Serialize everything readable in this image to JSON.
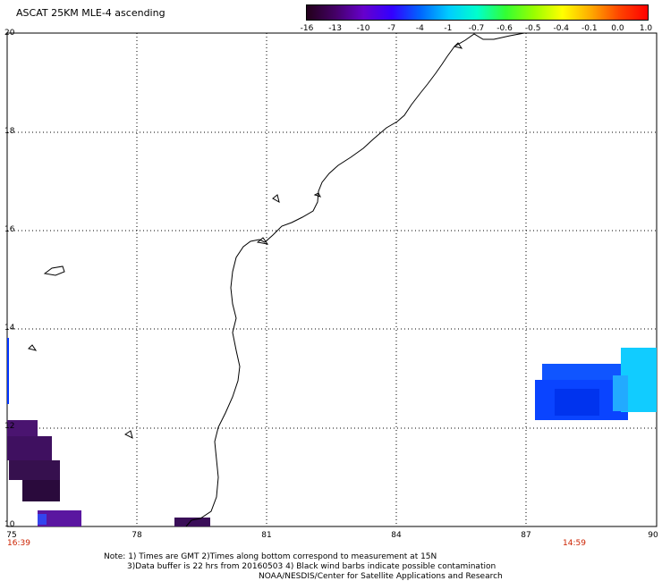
{
  "title": "ASCAT 25KM MLE-4 ascending",
  "colorbar": {
    "labels": [
      "-16",
      "-13",
      "-10",
      "-7",
      "-4",
      "-1",
      "-0.7",
      "-0.6",
      "-0.5",
      "-0.4",
      "-0.1",
      "0.0",
      "1.0"
    ],
    "colors": [
      "#22001a",
      "#440066",
      "#6600cc",
      "#3300ff",
      "#0066ff",
      "#00ccff",
      "#00ffcc",
      "#33ff33",
      "#99ff00",
      "#ffff00",
      "#ffaa00",
      "#ff4400",
      "#ff0000"
    ]
  },
  "axes": {
    "lat_labels": [
      "20",
      "18",
      "16",
      "14",
      "12",
      "10"
    ],
    "lon_labels": [
      "75",
      "78",
      "81",
      "84",
      "87",
      "90"
    ],
    "lat_range": [
      10,
      20
    ],
    "lon_range": [
      75,
      90
    ]
  },
  "times": {
    "left": "16:39",
    "right": "14:59"
  },
  "notes": [
    "Note: 1) Times are GMT 2)Times along bottom correspond to measurement at 15N",
    "3)Data buffer is 22 hrs from 20160503 4) Black wind barbs indicate possible contamination",
    "NOAA/NESDIS/Center for Satellite Applications and Research"
  ]
}
